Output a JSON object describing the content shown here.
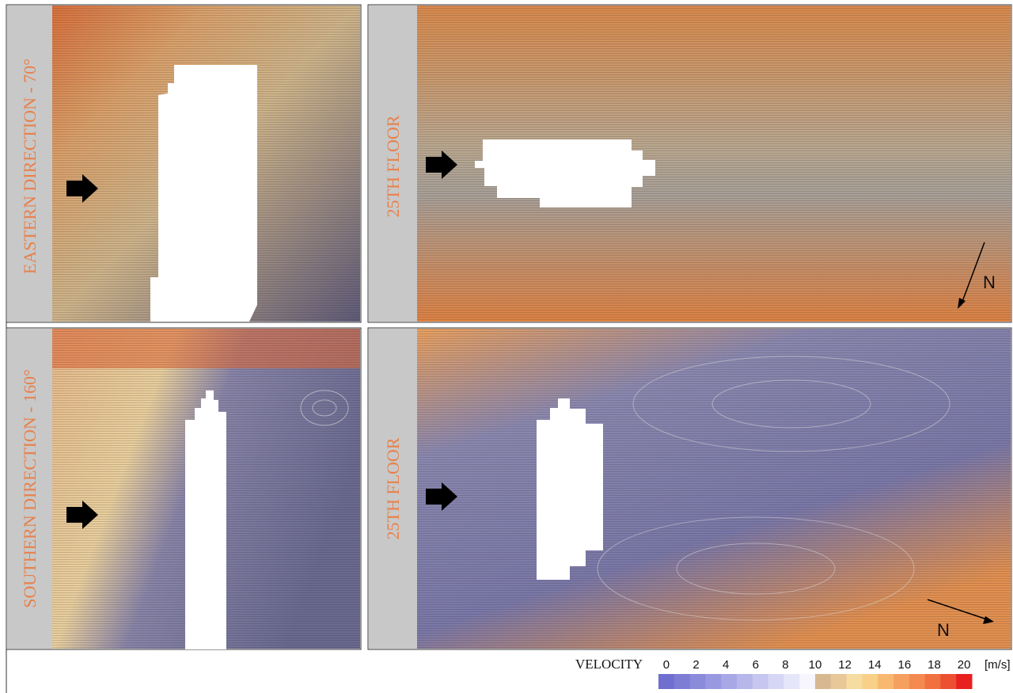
{
  "panels": [
    {
      "label": "EASTERN DIRECTION - 70°"
    },
    {
      "label": "25TH FLOOR",
      "north": "N"
    },
    {
      "label": "SOUTHERN DIRECTION - 160°"
    },
    {
      "label": "25TH FLOOR",
      "north": "N"
    }
  ],
  "colorbar": {
    "label": "VELOCITY",
    "unit": "[m/s]",
    "ticks": [
      0,
      2,
      4,
      6,
      8,
      10,
      12,
      14,
      16,
      18,
      20
    ],
    "colors": [
      "#6f6fcf",
      "#7d7dd6",
      "#8b8bdc",
      "#9999e1",
      "#a8a8e6",
      "#b7b7eb",
      "#c6c6f0",
      "#d6d6f5",
      "#e6e6fa",
      "#f6f6fc",
      "#d8b890",
      "#e8c898",
      "#f6dca0",
      "#f8d088",
      "#f8b870",
      "#f6a060",
      "#f48a50",
      "#f07040",
      "#ec5030",
      "#e82020"
    ]
  }
}
